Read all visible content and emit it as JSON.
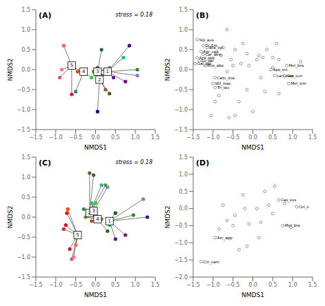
{
  "chart_data": [
    {
      "type": "scatter",
      "title": "(A)",
      "annotation": "stress = 0.18",
      "xlabel": "NMDS1",
      "ylabel": "NMDS2",
      "xlim": [
        -1.5,
        1.5
      ],
      "ylim": [
        -1.5,
        1.5
      ],
      "xticks": [
        {
          "value": -1.5,
          "label": "−1.5"
        },
        {
          "value": -1,
          "label": "−1.0"
        },
        {
          "value": -0.5,
          "label": "−0.5"
        },
        {
          "value": 0,
          "label": "0.0"
        },
        0.5,
        {
          "value": 1,
          "label": "1.0"
        },
        1.5
      ],
      "yticks": [
        {
          "value": -1.5,
          "label": "−1.5"
        },
        {
          "value": -1,
          "label": "−1.0"
        },
        {
          "value": -0.5,
          "label": "−0.5"
        },
        {
          "value": 0,
          "label": "0.0"
        },
        0.5,
        {
          "value": 1,
          "label": "1.0"
        },
        1.5
      ],
      "centroids": [
        {
          "label": "1",
          "x": 0.3,
          "y": -0.05
        },
        {
          "label": "2",
          "x": 0.1,
          "y": -0.25
        },
        {
          "label": "3",
          "x": 0.05,
          "y": -0.05
        },
        {
          "label": "4",
          "x": -0.3,
          "y": -0.05
        },
        {
          "label": "5",
          "x": -0.6,
          "y": 0.1
        }
      ],
      "sites": [
        {
          "x": 1.05,
          "y": -0.15,
          "color": "#9370db",
          "centroid": "1"
        },
        {
          "x": 0.85,
          "y": 0.6,
          "color": "#4b0082",
          "centroid": "1"
        },
        {
          "x": 0.75,
          "y": -0.3,
          "color": "#8b008b",
          "centroid": "1"
        },
        {
          "x": 0.45,
          "y": -0.2,
          "color": "#6a0dad",
          "centroid": "1"
        },
        {
          "x": 0.7,
          "y": 0.3,
          "color": "#00c78c",
          "centroid": "1"
        },
        {
          "x": 1.05,
          "y": 0.0,
          "color": "#228b22",
          "centroid": "1"
        },
        {
          "x": 0.25,
          "y": 0.0,
          "color": "#20b2aa",
          "centroid": "3"
        },
        {
          "x": 0.15,
          "y": 0.5,
          "color": "#2f6060",
          "centroid": "3"
        },
        {
          "x": 0.05,
          "y": 0.05,
          "color": "#556b2f",
          "centroid": "3"
        },
        {
          "x": -0.05,
          "y": -0.05,
          "color": "#6b8e23",
          "centroid": "3"
        },
        {
          "x": 0.0,
          "y": -0.1,
          "color": "#808000",
          "centroid": "3"
        },
        {
          "x": 0.35,
          "y": 0.05,
          "color": "#5f9ea0",
          "centroid": "3"
        },
        {
          "x": 0.15,
          "y": -0.15,
          "color": "#8b4513",
          "centroid": "2"
        },
        {
          "x": 0.25,
          "y": -0.5,
          "color": "#a0522d",
          "centroid": "2"
        },
        {
          "x": 0.05,
          "y": -1.05,
          "color": "#00008b",
          "centroid": "2"
        },
        {
          "x": 0.35,
          "y": -0.6,
          "color": "#4b5320",
          "centroid": "2"
        },
        {
          "x": -0.55,
          "y": 0.05,
          "color": "#006400",
          "centroid": "4"
        },
        {
          "x": -0.5,
          "y": -0.55,
          "color": "#2e8b57",
          "centroid": "4"
        },
        {
          "x": -0.25,
          "y": -0.1,
          "color": "#3cb371",
          "centroid": "4"
        },
        {
          "x": -0.1,
          "y": -0.2,
          "color": "#32cd32",
          "centroid": "4"
        },
        {
          "x": -0.8,
          "y": 0.6,
          "color": "#ff6347",
          "centroid": "5"
        },
        {
          "x": -0.6,
          "y": -0.62,
          "color": "#dc143c",
          "centroid": "5"
        },
        {
          "x": -0.9,
          "y": -0.2,
          "color": "#cd5c5c",
          "centroid": "5"
        },
        {
          "x": -0.85,
          "y": 0.0,
          "color": "#ff69b4",
          "centroid": "5"
        },
        {
          "x": -0.45,
          "y": -0.05,
          "color": "#ff4500",
          "centroid": "5"
        }
      ]
    },
    {
      "type": "scatter",
      "title": "(B)",
      "xlabel": "NMDS1",
      "ylabel": "NMDS2",
      "xlim": [
        -1.5,
        1.5
      ],
      "ylim": [
        -1.5,
        1.5
      ],
      "xticks": [
        {
          "value": -1.5,
          "label": "−1.5"
        },
        {
          "value": -1,
          "label": "−1.0"
        },
        {
          "value": -0.5,
          "label": "−0.5"
        },
        {
          "value": 0,
          "label": "0.0"
        },
        0.5,
        {
          "value": 1,
          "label": "1.0"
        },
        1.5
      ],
      "yticks": [
        {
          "value": -1.5,
          "label": "−1.5"
        },
        {
          "value": -1,
          "label": "−1.0"
        },
        {
          "value": -0.5,
          "label": "−0.5"
        },
        {
          "value": 0,
          "label": "0.0"
        },
        0.5,
        {
          "value": 1,
          "label": "1.0"
        },
        1.5
      ],
      "points": [
        {
          "x": -1.4,
          "y": 0.75,
          "label": "Slo_aus"
        },
        {
          "x": -1.25,
          "y": 0.6,
          "label": "Di_Ero"
        },
        {
          "x": -1.15,
          "y": 0.55,
          "label": "Bra_syl"
        },
        {
          "x": -1.3,
          "y": 0.45,
          "label": "Agr_cap"
        },
        {
          "x": -1.25,
          "y": 0.38,
          "label": "Car_dem"
        },
        {
          "x": -1.4,
          "y": 0.3,
          "label": "Ard_ope"
        },
        {
          "x": -1.35,
          "y": 0.22,
          "label": "Eu_pal"
        },
        {
          "x": -1.45,
          "y": 0.15,
          "label": "Gal_pal"
        },
        {
          "x": -1.2,
          "y": 0.1,
          "label": "Rho_obo"
        },
        {
          "x": -0.95,
          "y": -0.2,
          "label": "Catu_icia"
        },
        {
          "x": -1.0,
          "y": -0.35,
          "label": "Wil_mac"
        },
        {
          "x": -0.95,
          "y": -0.45,
          "label": "Tri_lau"
        },
        {
          "x": 0.45,
          "y": 0.0,
          "label": "Apo_sni"
        },
        {
          "x": 0.85,
          "y": 0.1,
          "label": "Mel_bra"
        },
        {
          "x": 0.8,
          "y": -0.15,
          "label": "Cas_cun"
        },
        {
          "x": 0.9,
          "y": -0.35,
          "label": "Mel_vim"
        },
        {
          "x": 0.55,
          "y": -0.15,
          "label": "Lan_cam"
        },
        {
          "x": -1.05,
          "y": -1.15
        },
        {
          "x": -0.65,
          "y": 1.0
        },
        {
          "x": -0.75,
          "y": 0.55
        },
        {
          "x": -0.45,
          "y": 0.5
        },
        {
          "x": -0.25,
          "y": 0.65
        },
        {
          "x": -0.15,
          "y": 0.4
        },
        {
          "x": 0.1,
          "y": 0.25
        },
        {
          "x": 0.15,
          "y": 0.35
        },
        {
          "x": 0.25,
          "y": 0.3
        },
        {
          "x": 0.5,
          "y": 0.3
        },
        {
          "x": 0.5,
          "y": 0.05
        },
        {
          "x": 0.6,
          "y": 0.65
        },
        {
          "x": 0.3,
          "y": -0.55
        },
        {
          "x": -0.35,
          "y": -0.8
        },
        {
          "x": -0.45,
          "y": -1.15
        },
        {
          "x": -0.6,
          "y": -1.2
        },
        {
          "x": 0.0,
          "y": -1.05
        },
        {
          "x": -0.15,
          "y": -0.5
        },
        {
          "x": 0.2,
          "y": -0.2
        },
        {
          "x": -0.5,
          "y": 0.1
        },
        {
          "x": -0.65,
          "y": -0.05
        },
        {
          "x": 0.65,
          "y": -0.6
        },
        {
          "x": -0.95,
          "y": -0.8
        },
        {
          "x": -0.85,
          "y": -0.65
        },
        {
          "x": 1.2,
          "y": 0.2
        },
        {
          "x": -0.3,
          "y": 0.15
        },
        {
          "x": -0.1,
          "y": 0.1
        },
        {
          "x": 0.65,
          "y": 0.25
        },
        {
          "x": -0.55,
          "y": 0.25
        },
        {
          "x": 0.35,
          "y": 0.5
        },
        {
          "x": -0.8,
          "y": 0.35
        }
      ]
    },
    {
      "type": "scatter",
      "title": "(C)",
      "annotation": "stress = 0.18",
      "xlabel": "NMDS1",
      "ylabel": "NMDS2",
      "xlim": [
        -1.5,
        1.5
      ],
      "ylim": [
        -1.5,
        1.5
      ],
      "xticks": [
        {
          "value": -1.5,
          "label": "−1.5"
        },
        {
          "value": -1,
          "label": "−1.0"
        },
        {
          "value": -0.5,
          "label": "−0.5"
        },
        {
          "value": 0,
          "label": "0.0"
        },
        0.5,
        {
          "value": 1,
          "label": "1.0"
        },
        1.5
      ],
      "yticks": [
        {
          "value": -1.5,
          "label": "−1.5"
        },
        {
          "value": -1,
          "label": "−1.0"
        },
        {
          "value": -0.5,
          "label": "−0.5"
        },
        {
          "value": 0,
          "label": "0.0"
        },
        0.5,
        {
          "value": 1,
          "label": "1.0"
        },
        1.5
      ],
      "centroids": [
        {
          "label": "1",
          "x": 0.35,
          "y": -0.1
        },
        {
          "label": "2",
          "x": -0.15,
          "y": 0.1
        },
        {
          "label": "3",
          "x": -0.05,
          "y": 0.15
        },
        {
          "label": "4",
          "x": 0.05,
          "y": -0.05
        },
        {
          "label": "5",
          "x": -0.45,
          "y": -0.45
        }
      ],
      "sites": [
        {
          "x": 1.2,
          "y": 0.45,
          "color": "#9370db",
          "centroid": "1"
        },
        {
          "x": 1.3,
          "y": 0.0,
          "color": "#4b0082",
          "centroid": "1"
        },
        {
          "x": 0.75,
          "y": -0.45,
          "color": "#8b008b",
          "centroid": "1"
        },
        {
          "x": 0.5,
          "y": -0.55,
          "color": "#6a0dad",
          "centroid": "1"
        },
        {
          "x": 0.35,
          "y": -0.2,
          "color": "#00c78c",
          "centroid": "1"
        },
        {
          "x": 0.95,
          "y": 0.05,
          "color": "#228b22",
          "centroid": "1"
        },
        {
          "x": 0.5,
          "y": 0.1,
          "color": "#006400",
          "centroid": "1"
        },
        {
          "x": -0.05,
          "y": 1.05,
          "color": "#2f6060",
          "centroid": "2"
        },
        {
          "x": -0.15,
          "y": 1.1,
          "color": "#556b2f",
          "centroid": "2"
        },
        {
          "x": 0.15,
          "y": 0.8,
          "color": "#20b2aa",
          "centroid": "2"
        },
        {
          "x": 0.25,
          "y": 0.8,
          "color": "#6b8e23",
          "centroid": "2"
        },
        {
          "x": 0.3,
          "y": 0.75,
          "color": "#5f9ea0",
          "centroid": "3"
        },
        {
          "x": -0.1,
          "y": 0.35,
          "color": "#3cb371",
          "centroid": "3"
        },
        {
          "x": 0.0,
          "y": 0.35,
          "color": "#32cd32",
          "centroid": "3"
        },
        {
          "x": -0.3,
          "y": 0.2,
          "color": "#2e8b57",
          "centroid": "3"
        },
        {
          "x": 0.15,
          "y": -0.05,
          "color": "#808000",
          "centroid": "4"
        },
        {
          "x": 0.3,
          "y": -0.35,
          "color": "#4b5320",
          "centroid": "4"
        },
        {
          "x": 0.1,
          "y": 0.0,
          "color": "#8b4513",
          "centroid": "4"
        },
        {
          "x": -0.1,
          "y": -0.1,
          "color": "#a0522d",
          "centroid": "4"
        },
        {
          "x": -0.25,
          "y": 0.0,
          "color": "#6b8e23",
          "centroid": "4"
        },
        {
          "x": -0.5,
          "y": -0.7,
          "color": "#ff6347",
          "centroid": "5"
        },
        {
          "x": -0.65,
          "y": -0.8,
          "color": "#dc143c",
          "centroid": "5"
        },
        {
          "x": -0.6,
          "y": -1.05,
          "color": "#cd5c5c",
          "centroid": "5"
        },
        {
          "x": -0.55,
          "y": -1.0,
          "color": "#ff69b4",
          "centroid": "5"
        },
        {
          "x": -0.7,
          "y": 0.2,
          "color": "#ff4500",
          "centroid": "5"
        },
        {
          "x": -0.72,
          "y": 0.1,
          "color": "#ff0000",
          "centroid": "5"
        },
        {
          "x": -0.75,
          "y": -0.2,
          "color": "#e8001f",
          "centroid": "5"
        },
        {
          "x": -0.8,
          "y": -0.3,
          "color": "#c0392b",
          "centroid": "5"
        }
      ]
    },
    {
      "type": "scatter",
      "title": "(D)",
      "xlabel": "NMDS1",
      "ylabel": "NMDS2",
      "xlim": [
        -1.5,
        1.5
      ],
      "ylim": [
        -2.0,
        1.5
      ],
      "xticks": [
        {
          "value": -1.5,
          "label": "−1.5"
        },
        {
          "value": -1,
          "label": "−1.0"
        },
        {
          "value": -0.5,
          "label": "−0.5"
        },
        {
          "value": 0,
          "label": "0.0"
        },
        0.5,
        {
          "value": 1,
          "label": "1.0"
        },
        1.5
      ],
      "yticks": [
        {
          "value": -2,
          "label": "−2.0"
        },
        {
          "value": -1.5,
          "label": "−1.5"
        },
        {
          "value": -1,
          "label": "−1.0"
        },
        {
          "value": -0.5,
          "label": "−0.5"
        },
        {
          "value": 0,
          "label": "0.0"
        },
        0.5,
        {
          "value": 1,
          "label": "1.0"
        },
        1.5
      ],
      "points": [
        {
          "x": -1.3,
          "y": -1.55,
          "label": "Cin_cam"
        },
        {
          "x": -0.95,
          "y": -0.85,
          "label": "Arc_app"
        },
        {
          "x": 0.65,
          "y": 0.25,
          "label": "Cas_sus"
        },
        {
          "x": 1.1,
          "y": 0.05,
          "label": "Cel_s"
        },
        {
          "x": 0.75,
          "y": -0.5,
          "label": "Met_bra"
        },
        {
          "x": 0.15,
          "y": -0.85
        },
        {
          "x": -0.25,
          "y": 0.4
        },
        {
          "x": 0.3,
          "y": 0.5
        },
        {
          "x": -0.45,
          "y": -0.2
        },
        {
          "x": 0.55,
          "y": 0.65
        },
        {
          "x": 0.95,
          "y": -0.55
        },
        {
          "x": -0.75,
          "y": 0.1
        },
        {
          "x": 0.2,
          "y": -0.4
        },
        {
          "x": -0.1,
          "y": -0.45
        },
        {
          "x": 0.1,
          "y": 0.0
        },
        {
          "x": -0.5,
          "y": -0.5
        },
        {
          "x": -0.2,
          "y": 0.0
        },
        {
          "x": 0.4,
          "y": 0.1
        },
        {
          "x": -0.15,
          "y": -1.1
        },
        {
          "x": -0.35,
          "y": -1.2
        },
        {
          "x": 0.8,
          "y": 0.15
        },
        {
          "x": -0.65,
          "y": -0.35
        },
        {
          "x": 0.5,
          "y": -0.15
        },
        {
          "x": -0.85,
          "y": -0.6
        }
      ]
    }
  ]
}
